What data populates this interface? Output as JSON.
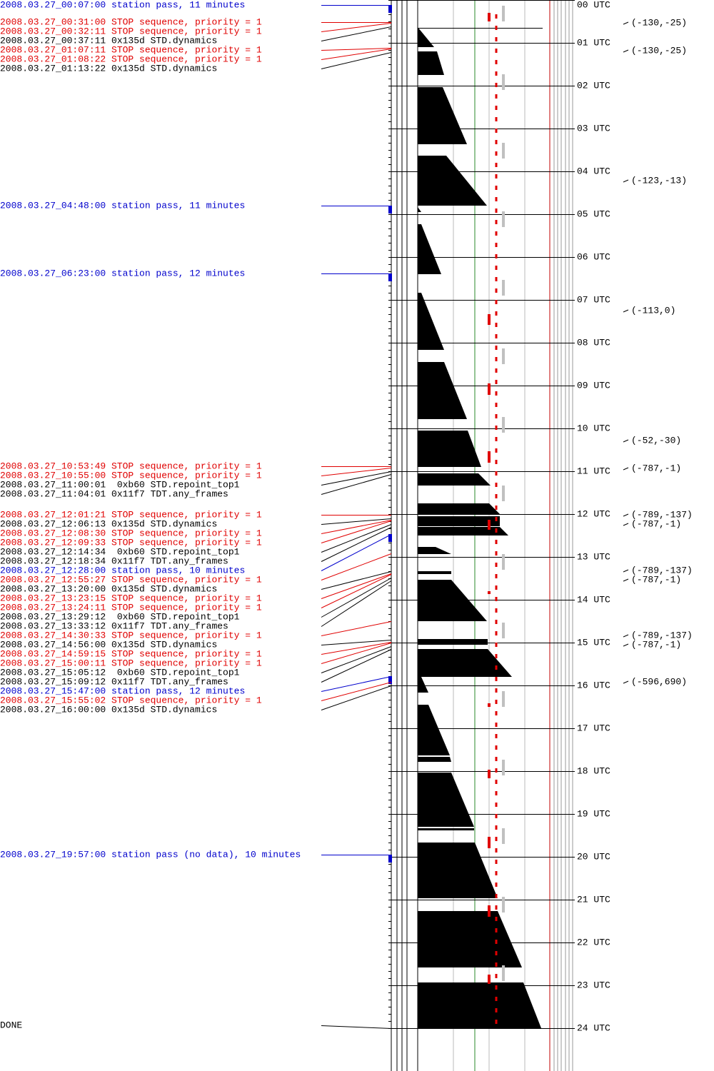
{
  "events": [
    {
      "text": "2008.03.27_00:07:00 station pass, 11 minutes",
      "color": "#0000cc"
    },
    {
      "text": "2008.03.27_00:31:00 STOP sequence, priority = 1",
      "color": "#e00000"
    },
    {
      "text": "2008.03.27_00:32:11 STOP sequence, priority = 1",
      "color": "#e00000"
    },
    {
      "text": "2008.03.27_00:37:11 0x135d STD.dynamics",
      "color": "#000000"
    },
    {
      "text": "2008.03.27_01:07:11 STOP sequence, priority = 1",
      "color": "#e00000"
    },
    {
      "text": "2008.03.27_01:08:22 STOP sequence, priority = 1",
      "color": "#e00000"
    },
    {
      "text": "2008.03.27_01:13:22 0x135d STD.dynamics",
      "color": "#000000"
    },
    {
      "text": "2008.03.27_04:48:00 station pass, 11 minutes",
      "color": "#0000cc"
    },
    {
      "text": "2008.03.27_06:23:00 station pass, 12 minutes",
      "color": "#0000cc"
    },
    {
      "text": "2008.03.27_10:53:49 STOP sequence, priority = 1",
      "color": "#e00000"
    },
    {
      "text": "2008.03.27_10:55:00 STOP sequence, priority = 1",
      "color": "#e00000"
    },
    {
      "text": "2008.03.27_11:00:01  0xb60 STD.repoint_top1",
      "color": "#000000"
    },
    {
      "text": "2008.03.27_11:04:01 0x11f7 TDT.any_frames",
      "color": "#000000"
    },
    {
      "text": "2008.03.27_12:01:21 STOP sequence, priority = 1",
      "color": "#e00000"
    },
    {
      "text": "2008.03.27_12:06:13 0x135d STD.dynamics",
      "color": "#000000"
    },
    {
      "text": "2008.03.27_12:08:30 STOP sequence, priority = 1",
      "color": "#e00000"
    },
    {
      "text": "2008.03.27_12:09:33 STOP sequence, priority = 1",
      "color": "#e00000"
    },
    {
      "text": "2008.03.27_12:14:34  0xb60 STD.repoint_top1",
      "color": "#000000"
    },
    {
      "text": "2008.03.27_12:18:34 0x11f7 TDT.any_frames",
      "color": "#000000"
    },
    {
      "text": "2008.03.27_12:28:00 station pass, 10 minutes",
      "color": "#0000cc"
    },
    {
      "text": "2008.03.27_12:55:27 STOP sequence, priority = 1",
      "color": "#e00000"
    },
    {
      "text": "2008.03.27_13:20:00 0x135d STD.dynamics",
      "color": "#000000"
    },
    {
      "text": "2008.03.27_13:23:15 STOP sequence, priority = 1",
      "color": "#e00000"
    },
    {
      "text": "2008.03.27_13:24:11 STOP sequence, priority = 1",
      "color": "#e00000"
    },
    {
      "text": "2008.03.27_13:29:12  0xb60 STD.repoint_top1",
      "color": "#000000"
    },
    {
      "text": "2008.03.27_13:33:12 0x11f7 TDT.any_frames",
      "color": "#000000"
    },
    {
      "text": "2008.03.27_14:30:33 STOP sequence, priority = 1",
      "color": "#e00000"
    },
    {
      "text": "2008.03.27_14:56:00 0x135d STD.dynamics",
      "color": "#000000"
    },
    {
      "text": "2008.03.27_14:59:15 STOP sequence, priority = 1",
      "color": "#e00000"
    },
    {
      "text": "2008.03.27_15:00:11 STOP sequence, priority = 1",
      "color": "#e00000"
    },
    {
      "text": "2008.03.27_15:05:12  0xb60 STD.repoint_top1",
      "color": "#000000"
    },
    {
      "text": "2008.03.27_15:09:12 0x11f7 TDT.any_frames",
      "color": "#000000"
    },
    {
      "text": "2008.03.27_15:47:00 station pass, 12 minutes",
      "color": "#0000cc"
    },
    {
      "text": "2008.03.27_15:55:02 STOP sequence, priority = 1",
      "color": "#e00000"
    },
    {
      "text": "2008.03.27_16:00:00 0x135d STD.dynamics",
      "color": "#000000"
    },
    {
      "text": "2008.03.27_19:57:00 station pass (no data), 10 minutes",
      "color": "#0000cc"
    }
  ],
  "done": "DONE",
  "hour_labels": [
    "00 UTC",
    "01 UTC",
    "02 UTC",
    "03 UTC",
    "04 UTC",
    "05 UTC",
    "06 UTC",
    "07 UTC",
    "08 UTC",
    "09 UTC",
    "10 UTC",
    "11 UTC",
    "12 UTC",
    "13 UTC",
    "14 UTC",
    "15 UTC",
    "16 UTC",
    "17 UTC",
    "18 UTC",
    "19 UTC",
    "20 UTC",
    "21 UTC",
    "22 UTC",
    "23 UTC",
    "24 UTC"
  ],
  "annotations": [
    "(-130,-25)",
    "(-130,-25)",
    "(-123,-13)",
    "(-113,0)",
    "(-52,-30)",
    "(-787,-1)",
    "(-789,-137)",
    "(-787,-1)",
    "(-789,-137)",
    "(-787,-1)",
    "(-789,-137)",
    "(-787,-1)",
    "(-596,690)"
  ]
}
